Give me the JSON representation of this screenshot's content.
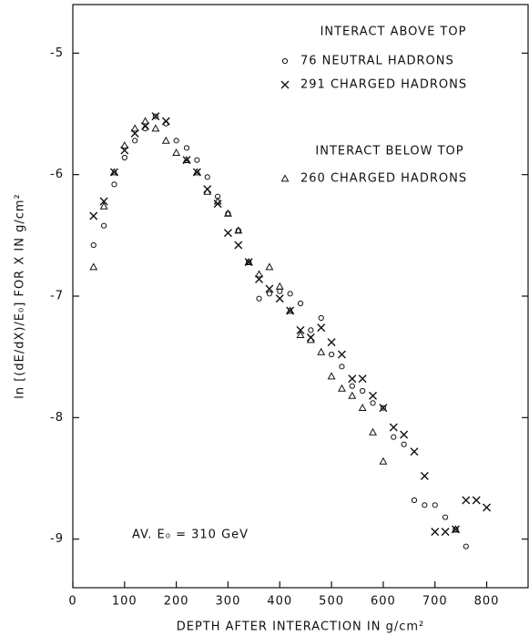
{
  "chart_data": {
    "type": "scatter",
    "x_label": "DEPTH AFTER INTERACTION IN g/cm²",
    "y_label": "ln [(dE/dX)/E₀] FOR X IN g/cm²",
    "annotations": [
      "INTERACT ABOVE TOP",
      "INTERACT BELOW TOP",
      "AV. E₀ = 310 GeV"
    ],
    "xlim": [
      0,
      880
    ],
    "ylim": [
      -9.4,
      -4.6
    ],
    "xticks": [
      0,
      100,
      200,
      300,
      400,
      500,
      600,
      700,
      800
    ],
    "yticks": [
      -5,
      -6,
      -7,
      -8,
      -9
    ],
    "legend": "upper right",
    "series": [
      {
        "name": "76 NEUTRAL HADRONS",
        "color": "#111111",
        "marker": "circle",
        "x": [
          40,
          60,
          80,
          100,
          120,
          140,
          160,
          180,
          200,
          220,
          240,
          260,
          280,
          300,
          320,
          340,
          360,
          380,
          400,
          420,
          440,
          460,
          480,
          500,
          520,
          540,
          560,
          580,
          600,
          620,
          640,
          660,
          680,
          700,
          720,
          740,
          760
        ],
        "values": [
          -6.58,
          -6.42,
          -6.08,
          -5.86,
          -5.72,
          -5.62,
          -5.52,
          -5.58,
          -5.72,
          -5.78,
          -5.88,
          -6.02,
          -6.18,
          -6.32,
          -6.46,
          -6.72,
          -7.02,
          -6.98,
          -6.96,
          -6.98,
          -7.06,
          -7.28,
          -7.18,
          -7.48,
          -7.58,
          -7.74,
          -7.78,
          -7.88,
          -7.92,
          -8.16,
          -8.22,
          -8.68,
          -8.72,
          -8.72,
          -8.82,
          -8.92,
          -9.06
        ]
      },
      {
        "name": "291 CHARGED HADRONS",
        "color": "#111111",
        "marker": "cross",
        "x": [
          40,
          60,
          80,
          100,
          120,
          140,
          160,
          180,
          220,
          240,
          260,
          280,
          300,
          320,
          340,
          360,
          380,
          400,
          420,
          440,
          460,
          480,
          500,
          520,
          540,
          560,
          580,
          600,
          620,
          640,
          660,
          680,
          700,
          720,
          740,
          760,
          780,
          800
        ],
        "values": [
          -6.34,
          -6.22,
          -5.98,
          -5.8,
          -5.66,
          -5.6,
          -5.52,
          -5.56,
          -5.88,
          -5.98,
          -6.12,
          -6.24,
          -6.48,
          -6.58,
          -6.72,
          -6.86,
          -6.94,
          -7.02,
          -7.12,
          -7.28,
          -7.34,
          -7.26,
          -7.38,
          -7.48,
          -7.68,
          -7.68,
          -7.82,
          -7.92,
          -8.08,
          -8.14,
          -8.28,
          -8.48,
          -8.94,
          -8.94,
          -8.92,
          -8.68,
          -8.68,
          -8.74
        ]
      },
      {
        "name": "260 CHARGED HADRONS",
        "color": "#111111",
        "marker": "triangle",
        "x": [
          40,
          60,
          80,
          100,
          120,
          140,
          160,
          180,
          200,
          220,
          240,
          260,
          280,
          300,
          320,
          340,
          360,
          380,
          400,
          420,
          440,
          460,
          480,
          500,
          520,
          540,
          560,
          580,
          600,
          740
        ],
        "values": [
          -6.76,
          -6.26,
          -5.98,
          -5.76,
          -5.62,
          -5.56,
          -5.62,
          -5.72,
          -5.82,
          -5.88,
          -5.98,
          -6.14,
          -6.22,
          -6.32,
          -6.46,
          -6.72,
          -6.82,
          -6.76,
          -6.92,
          -7.12,
          -7.32,
          -7.36,
          -7.46,
          -7.66,
          -7.76,
          -7.82,
          -7.92,
          -8.12,
          -8.36,
          -8.92
        ]
      }
    ]
  }
}
